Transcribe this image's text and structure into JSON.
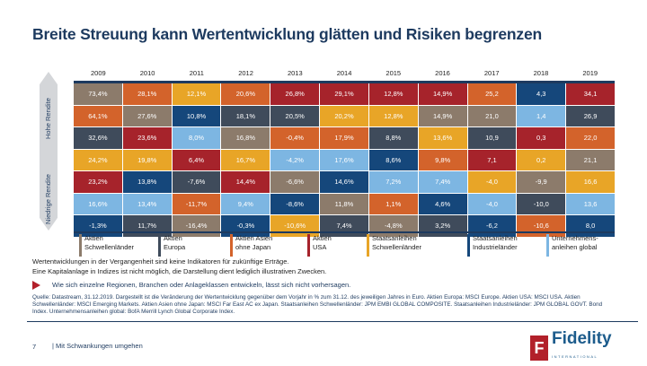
{
  "title": "Breite Streuung kann Wertentwicklung glätten und Risiken begrenzen",
  "side_labels": {
    "high": "Hohe Rendite",
    "low": "Niedrige Rendite"
  },
  "years": [
    "2009",
    "2010",
    "2011",
    "2012",
    "2013",
    "2014",
    "2015",
    "2016",
    "2017",
    "2018",
    "2019"
  ],
  "colors": {
    "S": "#8c7b6b",
    "E": "#3f4b5b",
    "A": "#d3632b",
    "U": "#a6232b",
    "G": "#e8a527",
    "N": "#15477b",
    "L": "#7db6e2"
  },
  "legend": [
    {
      "key": "S",
      "label1": "Aktien",
      "label2": "Schwellenländer"
    },
    {
      "key": "E",
      "label1": "Aktien",
      "label2": "Europa"
    },
    {
      "key": "A",
      "label1": "Aktien Asien",
      "label2": "ohne Japan"
    },
    {
      "key": "U",
      "label1": "Aktien",
      "label2": "USA"
    },
    {
      "key": "G",
      "label1": "Staatsanleihen",
      "label2": "Schwellenländer"
    },
    {
      "key": "N",
      "label1": "Staatsanleihen",
      "label2": "Industrieländer"
    },
    {
      "key": "L",
      "label1": "Unternehmens-",
      "label2": "anleihen global"
    }
  ],
  "rows": [
    [
      [
        "73,4%",
        "S"
      ],
      [
        "28,1%",
        "A"
      ],
      [
        "12,1%",
        "G"
      ],
      [
        "20,6%",
        "A"
      ],
      [
        "26,8%",
        "U"
      ],
      [
        "29,1%",
        "U"
      ],
      [
        "12,8%",
        "U"
      ],
      [
        "14,9%",
        "U"
      ],
      [
        "25,2",
        "A"
      ],
      [
        "4,3",
        "N"
      ],
      [
        "34,1",
        "U"
      ]
    ],
    [
      [
        "64,1%",
        "A"
      ],
      [
        "27,6%",
        "S"
      ],
      [
        "10,8%",
        "N"
      ],
      [
        "18,1%",
        "E"
      ],
      [
        "20,5%",
        "E"
      ],
      [
        "20,2%",
        "G"
      ],
      [
        "12,8%",
        "G"
      ],
      [
        "14,9%",
        "S"
      ],
      [
        "21,0",
        "S"
      ],
      [
        "1,4",
        "L"
      ],
      [
        "26,9",
        "E"
      ]
    ],
    [
      [
        "32,6%",
        "E"
      ],
      [
        "23,6%",
        "U"
      ],
      [
        "8,0%",
        "L"
      ],
      [
        "16,8%",
        "S"
      ],
      [
        "-0,4%",
        "A"
      ],
      [
        "17,9%",
        "A"
      ],
      [
        "8,8%",
        "E"
      ],
      [
        "13,6%",
        "G"
      ],
      [
        "10,9",
        "E"
      ],
      [
        "0,3",
        "U"
      ],
      [
        "22,0",
        "A"
      ]
    ],
    [
      [
        "24,2%",
        "G"
      ],
      [
        "19,8%",
        "G"
      ],
      [
        "6,4%",
        "U"
      ],
      [
        "16,7%",
        "G"
      ],
      [
        "-4,2%",
        "L"
      ],
      [
        "17,6%",
        "L"
      ],
      [
        "8,6%",
        "N"
      ],
      [
        "9,8%",
        "A"
      ],
      [
        "7,1",
        "U"
      ],
      [
        "0,2",
        "G"
      ],
      [
        "21,1",
        "S"
      ]
    ],
    [
      [
        "23,2%",
        "U"
      ],
      [
        "13,8%",
        "N"
      ],
      [
        "-7,6%",
        "E"
      ],
      [
        "14,4%",
        "U"
      ],
      [
        "-6,6%",
        "S"
      ],
      [
        "14,6%",
        "N"
      ],
      [
        "7,2%",
        "L"
      ],
      [
        "7,4%",
        "L"
      ],
      [
        "-4,0",
        "G"
      ],
      [
        "-9,9",
        "S"
      ],
      [
        "16,6",
        "G"
      ]
    ],
    [
      [
        "16,6%",
        "L"
      ],
      [
        "13,4%",
        "L"
      ],
      [
        "-11,7%",
        "A"
      ],
      [
        "9,4%",
        "L"
      ],
      [
        "-8,6%",
        "N"
      ],
      [
        "11,8%",
        "S"
      ],
      [
        "1,1%",
        "A"
      ],
      [
        "4,6%",
        "N"
      ],
      [
        "-4,0",
        "L"
      ],
      [
        "-10,0",
        "E"
      ],
      [
        "13,6",
        "L"
      ]
    ],
    [
      [
        "-1,3%",
        "N"
      ],
      [
        "11,7%",
        "E"
      ],
      [
        "-16,4%",
        "S"
      ],
      [
        "-0,3%",
        "N"
      ],
      [
        "-10,6%",
        "G"
      ],
      [
        "7,4%",
        "E"
      ],
      [
        "-4,8%",
        "S"
      ],
      [
        "3,2%",
        "E"
      ],
      [
        "-6,2",
        "N"
      ],
      [
        "-10,6",
        "A"
      ],
      [
        "8,0",
        "N"
      ]
    ]
  ],
  "notes": {
    "line1": "Wertentwicklungen in der Vergangenheit sind keine Indikatoren für zukünftige Erträge.",
    "line2": "Eine Kapitalanlage in Indizes ist nicht möglich, die Darstellung dient lediglich illustrativen Zwecken.",
    "highlight": "Wie sich einzelne Regionen, Branchen oder Anlageklassen entwickeln, lässt sich nicht vorhersagen."
  },
  "source": "Quelle: Datastream, 31.12.2019. Dargestellt ist die Veränderung der Wertentwicklung gegenüber dem Vorjahr in % zum 31.12. des jeweiligen Jahres in Euro. Aktien Europa: MSCI Europe. Aktien USA: MSCI USA. Aktien Schwellenländer: MSCI Emerging Markets. Aktien Asien ohne Japan: MSCI Far East AC ex Japan. Staatsanleihen Schwellenländer: JPM EMBI GLOBAL COMPOSITE. Staatsanleihen Industrieländer: JPM GLOBAL GOVT. Bond Index. Unternehmensanleihen global: BofA Merrill Lynch Global Corporate Index.",
  "footer": {
    "page": "7",
    "section": "| Mit Schwankungen umgehen"
  },
  "logo": {
    "name": "Fidelity",
    "sub": "INTERNATIONAL",
    "mark": "F"
  }
}
